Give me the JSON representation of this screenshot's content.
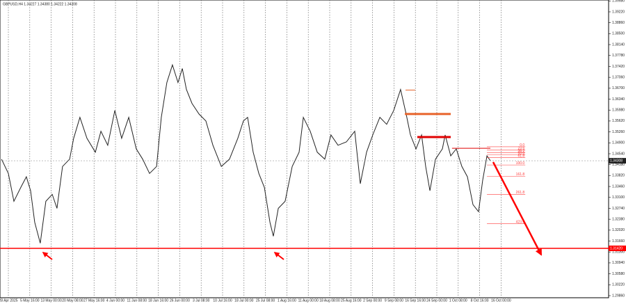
{
  "chart_data": {
    "type": "line",
    "title": "GBPUSD,H4 1.34227 1.34380 1.34222 1.34308",
    "color": "#222222",
    "xlim": [
      -0.39,
      28.02
    ],
    "ylim": [
      1.29791,
      1.3961
    ],
    "xticks": [
      {
        "value": 0,
        "label": "28 Apr 2025"
      },
      {
        "value": 1,
        "label": "5 May 16:00"
      },
      {
        "value": 2,
        "label": "13 May 00:00"
      },
      {
        "value": 3,
        "label": "20 May 08:00"
      },
      {
        "value": 4,
        "label": "27 May 16:00"
      },
      {
        "value": 5,
        "label": "4 Jun 00:00"
      },
      {
        "value": 6,
        "label": "11 Jun 08:00"
      },
      {
        "value": 7,
        "label": "18 Jun 16:00"
      },
      {
        "value": 8,
        "label": "26 Jun 00:00"
      },
      {
        "value": 9,
        "label": "3 Jul 08:00"
      },
      {
        "value": 10,
        "label": "10 Jul 16:00"
      },
      {
        "value": 11,
        "label": "18 Jul 00:00"
      },
      {
        "value": 12,
        "label": "25 Jul 08:00"
      },
      {
        "value": 13,
        "label": "1 Aug 16:00"
      },
      {
        "value": 14,
        "label": "11 Aug 00:00"
      },
      {
        "value": 15,
        "label": "18 Aug 08:00"
      },
      {
        "value": 16,
        "label": "25 Aug 16:00"
      },
      {
        "value": 17,
        "label": "2 Sep 00:00"
      },
      {
        "value": 18,
        "label": "9 Sep 08:00"
      },
      {
        "value": 19,
        "label": "16 Sep 16:00"
      },
      {
        "value": 20,
        "label": "24 Sep 00:00"
      },
      {
        "value": 21,
        "label": "1 Oct 08:00"
      },
      {
        "value": 22,
        "label": "8 Oct 16:00"
      },
      {
        "value": 23,
        "label": "16 Oct 00:00"
      }
    ],
    "yticks": [
      {
        "value": 1.2986,
        "label": "1.29860"
      },
      {
        "value": 1.3022,
        "label": "1.30220"
      },
      {
        "value": 1.3058,
        "label": "1.30580"
      },
      {
        "value": 1.3094,
        "label": "1.30940"
      },
      {
        "value": 1.313,
        "label": "1.31300"
      },
      {
        "value": 1.3166,
        "label": "1.31660"
      },
      {
        "value": 1.3202,
        "label": "1.32020"
      },
      {
        "value": 1.3238,
        "label": "1.32380"
      },
      {
        "value": 1.3274,
        "label": "1.32740"
      },
      {
        "value": 1.331,
        "label": "1.33100"
      },
      {
        "value": 1.3346,
        "label": "1.33460"
      },
      {
        "value": 1.3382,
        "label": "1.33820"
      },
      {
        "value": 1.3418,
        "label": "1.34180"
      },
      {
        "value": 1.3454,
        "label": "1.34540"
      },
      {
        "value": 1.349,
        "label": "1.34900"
      },
      {
        "value": 1.3526,
        "label": "1.35260"
      },
      {
        "value": 1.3562,
        "label": "1.35620"
      },
      {
        "value": 1.3598,
        "label": "1.35980"
      },
      {
        "value": 1.3634,
        "label": "1.36340"
      },
      {
        "value": 1.367,
        "label": "1.36700"
      },
      {
        "value": 1.3706,
        "label": "1.37060"
      },
      {
        "value": 1.3742,
        "label": "1.37420"
      },
      {
        "value": 1.3778,
        "label": "1.37780"
      },
      {
        "value": 1.3814,
        "label": "1.38140"
      },
      {
        "value": 1.385,
        "label": "1.38500"
      },
      {
        "value": 1.3886,
        "label": "1.38860"
      },
      {
        "value": 1.3922,
        "label": "1.39220"
      },
      {
        "value": 1.3958,
        "label": "1.39580"
      }
    ],
    "x": [
      -0.32,
      0,
      0.26,
      0.58,
      0.84,
      1.04,
      1.23,
      1.49,
      1.75,
      2.05,
      2.27,
      2.53,
      2.86,
      3.05,
      3.34,
      3.67,
      4.06,
      4.32,
      4.64,
      4.97,
      5.29,
      5.62,
      5.97,
      6.27,
      6.59,
      6.92,
      7.14,
      7.4,
      7.66,
      7.92,
      8.12,
      8.31,
      8.57,
      8.9,
      9.22,
      9.55,
      9.94,
      10.32,
      10.71,
      10.97,
      11.17,
      11.43,
      11.69,
      11.95,
      12.21,
      12.37,
      12.6,
      12.92,
      13.25,
      13.57,
      13.77,
      14.09,
      14.42,
      14.77,
      15.06,
      15.39,
      15.78,
      16.17,
      16.43,
      16.72,
      17.01,
      17.34,
      17.66,
      17.99,
      18.31,
      18.57,
      18.77,
      19.03,
      19.29,
      19.48,
      19.68,
      19.94,
      20.26,
      20.39,
      20.65,
      20.91,
      21.17,
      21.43,
      21.69,
      21.95,
      22.14,
      22.34,
      22.5
    ],
    "values": [
      1.3436,
      1.3389,
      1.3297,
      1.3343,
      1.3378,
      1.3332,
      1.3228,
      1.3159,
      1.3297,
      1.332,
      1.3274,
      1.3412,
      1.3436,
      1.3505,
      1.3574,
      1.3505,
      1.3459,
      1.3528,
      1.3482,
      1.3597,
      1.3505,
      1.3574,
      1.347,
      1.3436,
      1.3389,
      1.3412,
      1.3574,
      1.3689,
      1.3747,
      1.3689,
      1.3735,
      1.3666,
      1.362,
      1.3585,
      1.3562,
      1.3482,
      1.3412,
      1.3436,
      1.3505,
      1.3562,
      1.3574,
      1.3459,
      1.3389,
      1.3343,
      1.3228,
      1.3182,
      1.3274,
      1.3297,
      1.3412,
      1.3459,
      1.3574,
      1.3528,
      1.3459,
      1.3436,
      1.3516,
      1.3482,
      1.3493,
      1.3528,
      1.3355,
      1.3459,
      1.3516,
      1.3574,
      1.3551,
      1.3597,
      1.3666,
      1.3585,
      1.3516,
      1.347,
      1.3516,
      1.3412,
      1.3332,
      1.3436,
      1.347,
      1.3516,
      1.3447,
      1.347,
      1.3412,
      1.3378,
      1.3286,
      1.3263,
      1.3366,
      1.3447,
      1.3431
    ],
    "current_price": {
      "value": 1.34308,
      "label": "1.34308"
    },
    "support": {
      "value": 1.3142,
      "label": "1.31420",
      "color": "#ff0000"
    },
    "levels": [
      {
        "price": 1.3664,
        "x": [
          18.54,
          18.99
        ],
        "color": "#e8632a",
        "width": 1
      },
      {
        "price": 1.3585,
        "x": [
          18.51,
          20.65
        ],
        "color": "#e8632a",
        "width": 3
      },
      {
        "price": 1.3509,
        "x": [
          19.09,
          20.65
        ],
        "color": "#e00000",
        "width": 3
      },
      {
        "price": 1.3472,
        "x": [
          20.71,
          22.5
        ],
        "color": "#e00000",
        "width": 1
      }
    ],
    "fibo": {
      "x": [
        22.34,
        24.13
      ],
      "color": "#ff3b3b",
      "levels": [
        {
          "label": "0.0",
          "price": 1.3477
        },
        {
          "label": "23.6",
          "price": 1.3466
        },
        {
          "label": "38.2",
          "price": 1.3457
        },
        {
          "label": "50.0",
          "price": 1.345
        },
        {
          "label": "61.8",
          "price": 1.3441
        },
        {
          "label": "100.0",
          "price": 1.3417
        },
        {
          "label": "161.8",
          "price": 1.338
        },
        {
          "label": "261.8",
          "price": 1.332
        },
        {
          "label": "423.6",
          "price": 1.3223
        }
      ]
    }
  }
}
